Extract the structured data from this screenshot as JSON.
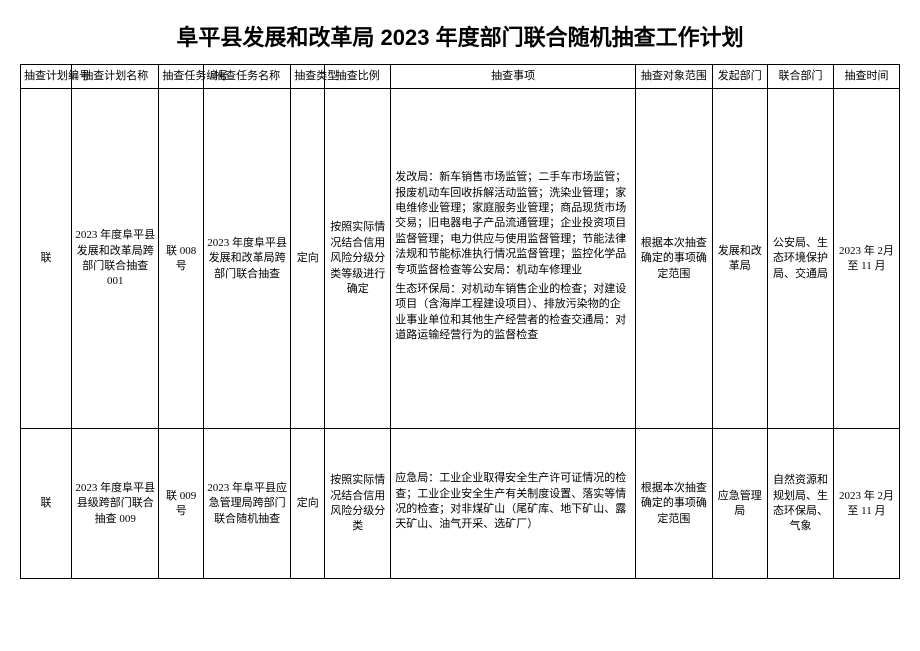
{
  "title": "阜平县发展和改革局 2023 年度部门联合随机抽查工作计划",
  "headers": {
    "c1": "抽查计划编号",
    "c2": "抽查计划名称",
    "c3": "抽查任务编号",
    "c4": "抽查任务名称",
    "c5": "抽查类型",
    "c6": "抽查比例",
    "c7": "抽查事项",
    "c8": "抽查对象范围",
    "c9": "发起部门",
    "c10": "联合部门",
    "c11": "抽查时间"
  },
  "rows": [
    {
      "plan_no": "联",
      "plan_name": "2023 年度阜平县发展和改革局跨部门联合抽查001",
      "task_no": "联 008号",
      "task_name": "2023 年度阜平县发展和改革局跨部门联合抽查",
      "type": "定向",
      "ratio": "按照实际情况结合信用风险分级分类等级进行确定",
      "matters_p1": "发改局：新车销售市场监管；二手车市场监管；报废机动车回收拆解活动监管；洗染业管理；家电维修业管理；家庭服务业管理；商品现货市场交易；旧电器电子产品流通管理；企业投资项目监督管理；电力供应与使用监督管理；节能法律法规和节能标准执行情况监督管理；监控化学品专项监督检查等公安局：机动车修理业",
      "matters_p2": "生态环保局：对机动车销售企业的检查；对建设项目（含海岸工程建设项目）、排放污染物的企业事业单位和其他生产经营者的检查交通局：对道路运输经营行为的监督检查",
      "scope": "根据本次抽查确定的事项确定范围",
      "initiator": "发展和改革局",
      "joint": "公安局、生态环境保护局、交通局",
      "time": "2023 年 2月至 11 月"
    },
    {
      "plan_no": "联",
      "plan_name": "2023 年度阜平县县级跨部门联合抽查 009",
      "task_no": "联 009号",
      "task_name": "2023 年阜平县应急管理局跨部门联合随机抽查",
      "type": "定向",
      "ratio": "按照实际情况结合信用风险分级分类",
      "matters_p1": "应急局：工业企业取得安全生产许可证情况的检查；工业企业安全生产有关制度设置、落实等情况的检查；对非煤矿山（尾矿库、地下矿山、露天矿山、油气开采、选矿厂）",
      "matters_p2": "",
      "scope": "根据本次抽查确定的事项确定范围",
      "initiator": "应急管理局",
      "joint": "自然资源和规划局、生态环保局、气象",
      "time": "2023 年 2月至 11 月"
    }
  ]
}
